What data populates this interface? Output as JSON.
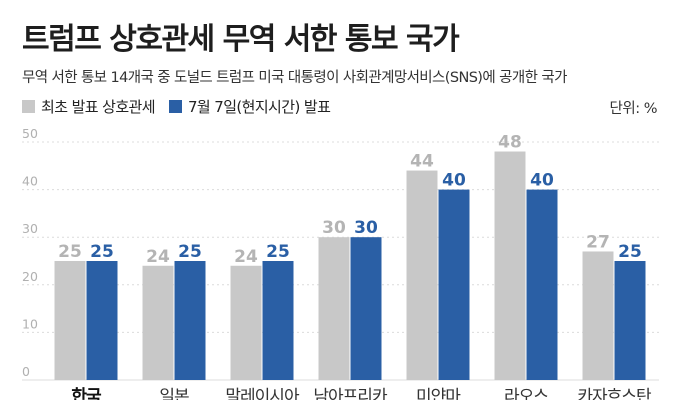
{
  "title": "트럼프 상호관세 무역 서한 통보 국가",
  "subtitle": "무역 서한 통보 14개국 중 도널드 트럼프 미국 대통령이 사회관계망서비스(SNS)에 공개한 국가",
  "unit": "단위: %",
  "colors": {
    "initial": "#c8c8c8",
    "july7": "#2a5fa5",
    "initial_label": "#b4b4b4",
    "july7_label": "#2a5fa5",
    "grid": "#dcdcdc",
    "axis_text": "#b0b0b0"
  },
  "chart_data": {
    "type": "bar",
    "title": "트럼프 상호관세 무역 서한 통보 국가",
    "categories": [
      "한국",
      "일본",
      "말레이시아",
      "남아프리카",
      "미얀마",
      "라오스",
      "카자흐스탄"
    ],
    "series": [
      {
        "name": "최초 발표 상호관세",
        "values": [
          25,
          24,
          24,
          30,
          44,
          48,
          27
        ]
      },
      {
        "name": "7월 7일(현지시간) 발표",
        "values": [
          25,
          25,
          25,
          30,
          40,
          40,
          25
        ]
      }
    ],
    "ylim": [
      0,
      50
    ],
    "yticks": [
      0,
      10,
      20,
      30,
      40,
      50
    ],
    "grid": true,
    "highlight_category": "한국",
    "legend_position": "top-left"
  }
}
